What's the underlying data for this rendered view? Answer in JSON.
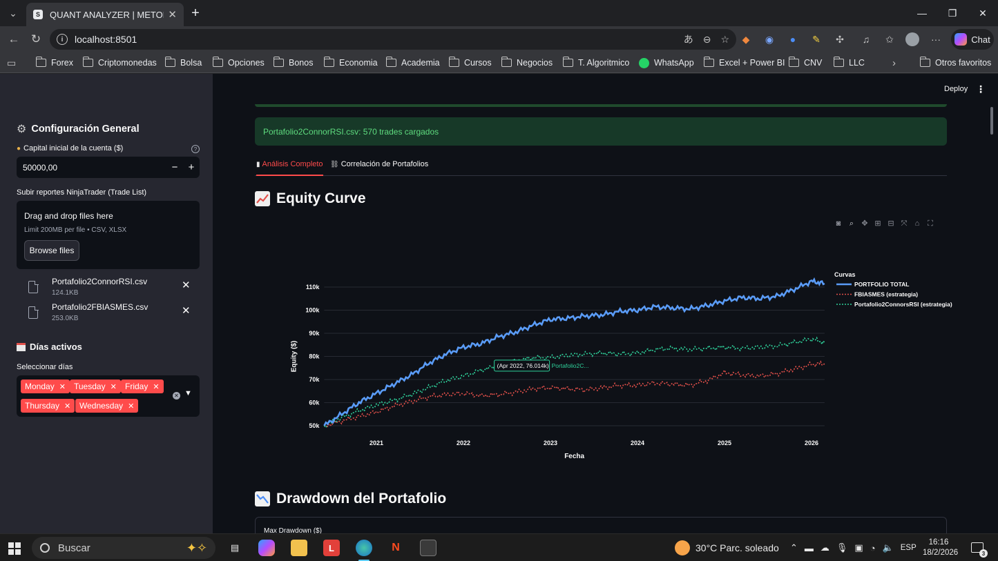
{
  "browser": {
    "tab_title": "QUANT ANALYZER | METODO F",
    "url": "localhost:8501",
    "chat_label": "Chat",
    "bookmarks": [
      "Forex",
      "Criptomonedas",
      "Bolsa",
      "Opciones",
      "Bonos",
      "Economia",
      "Academia",
      "Cursos",
      "Negocios",
      "T. Algoritmico",
      "WhatsApp",
      "Excel + Power BI",
      "CNV",
      "LLC"
    ],
    "other_bookmarks": "Otros favoritos"
  },
  "sidebar": {
    "config_title": "Configuración General",
    "capital_label": "Capital inicial de la cuenta ($)",
    "capital_value": "50000,00",
    "upload_label": "Subir reportes NinjaTrader (Trade List)",
    "dropzone_title": "Drag and drop files here",
    "dropzone_limit": "Limit 200MB per file • CSV, XLSX",
    "browse_label": "Browse files",
    "files": [
      {
        "name": "Portafolio2ConnorRSI.csv",
        "size": "124.1KB"
      },
      {
        "name": "Portafolio2FBIASMES.csv",
        "size": "253.0KB"
      }
    ],
    "days_title": "Días activos",
    "days_label": "Seleccionar días",
    "days": [
      "Monday",
      "Tuesday",
      "Friday",
      "Thursday",
      "Wednesday"
    ]
  },
  "main": {
    "deploy_label": "Deploy",
    "success_msg": "Portafolio2ConnorRSI.csv: 570 trades cargados",
    "tabs": [
      "Análisis Completo",
      "Correlación de Portafolios"
    ],
    "equity_title": "Equity Curve",
    "drawdown_title": "Drawdown del Portafolio",
    "drawdown_metric": "Max Drawdown ($)"
  },
  "chart_data": {
    "type": "line",
    "title": "",
    "xlabel": "Fecha",
    "ylabel": "Equity ($)",
    "x_ticks": [
      "2021",
      "2022",
      "2023",
      "2024",
      "2025",
      "2026"
    ],
    "y_ticks": [
      "50k",
      "60k",
      "70k",
      "80k",
      "90k",
      "100k",
      "110k"
    ],
    "ylim": [
      50000,
      115000
    ],
    "xlim": [
      2020.4,
      2026.15
    ],
    "legend_title": "Curvas",
    "legend_position": "top-right",
    "hover_label": "(Apr 2022, 76.014k)",
    "hover_series": "Portafolio2C...",
    "series": [
      {
        "name": "PORTFOLIO TOTAL",
        "color": "#5a9cf8",
        "dash": "solid",
        "x": [
          2020.4,
          2020.6,
          2020.8,
          2021.0,
          2021.2,
          2021.4,
          2021.6,
          2021.8,
          2022.0,
          2022.2,
          2022.4,
          2022.6,
          2022.8,
          2023.0,
          2023.2,
          2023.4,
          2023.6,
          2023.8,
          2024.0,
          2024.2,
          2024.4,
          2024.6,
          2024.8,
          2025.0,
          2025.2,
          2025.4,
          2025.6,
          2025.8,
          2026.0,
          2026.15
        ],
        "y": [
          50000,
          55000,
          60000,
          64000,
          68000,
          72000,
          77000,
          81000,
          84000,
          85500,
          88500,
          90500,
          93500,
          96000,
          96500,
          97500,
          98000,
          99500,
          100000,
          101500,
          101000,
          100500,
          102000,
          104000,
          105500,
          105000,
          106000,
          109000,
          112500,
          111500
        ]
      },
      {
        "name": "FBIASMES (estrategia)",
        "color": "#e2504a",
        "dash": "dotted",
        "x": [
          2020.4,
          2020.6,
          2020.8,
          2021.0,
          2021.2,
          2021.4,
          2021.6,
          2021.8,
          2022.0,
          2022.2,
          2022.4,
          2022.6,
          2022.8,
          2023.0,
          2023.2,
          2023.4,
          2023.6,
          2023.8,
          2024.0,
          2024.2,
          2024.4,
          2024.6,
          2024.8,
          2025.0,
          2025.2,
          2025.4,
          2025.6,
          2025.8,
          2026.0,
          2026.15
        ],
        "y": [
          50000,
          52000,
          54000,
          56000,
          58500,
          60500,
          62500,
          63500,
          64000,
          63000,
          63500,
          64500,
          66000,
          66500,
          66000,
          65500,
          66500,
          67500,
          67500,
          68500,
          68000,
          67500,
          69500,
          73000,
          72000,
          71500,
          72500,
          74500,
          76500,
          77000
        ]
      },
      {
        "name": "Portafolio2ConnorsRSI (estrategia)",
        "color": "#2fd39c",
        "dash": "dotted",
        "x": [
          2020.4,
          2020.6,
          2020.8,
          2021.0,
          2021.2,
          2021.4,
          2021.6,
          2021.8,
          2022.0,
          2022.2,
          2022.4,
          2022.6,
          2022.8,
          2023.0,
          2023.2,
          2023.4,
          2023.6,
          2023.8,
          2024.0,
          2024.2,
          2024.4,
          2024.6,
          2024.8,
          2025.0,
          2025.2,
          2025.4,
          2025.6,
          2025.8,
          2026.0,
          2026.15
        ],
        "y": [
          50000,
          53500,
          56500,
          59000,
          61000,
          63500,
          66500,
          69500,
          71500,
          74000,
          76014,
          78000,
          79500,
          79500,
          80500,
          81000,
          81500,
          81000,
          81500,
          83000,
          83500,
          83000,
          83500,
          84000,
          83500,
          84000,
          84500,
          86000,
          87500,
          86000
        ]
      }
    ]
  }
}
